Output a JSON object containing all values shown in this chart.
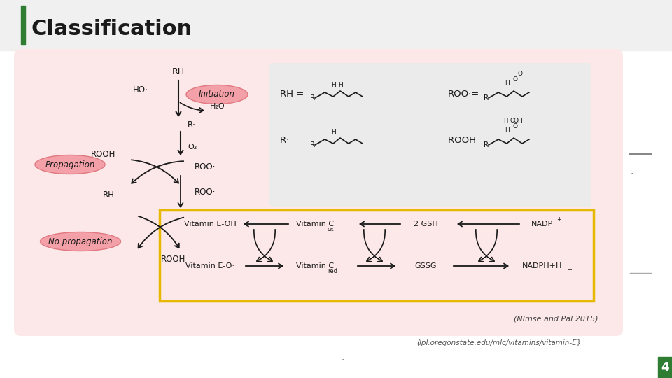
{
  "title": "Classification",
  "title_color": "#1a1a1a",
  "title_bar_color": "#2e7d32",
  "bg_color": "#ffffff",
  "main_panel_color": "#fce8e8",
  "chem_panel_color": "#ebebeb",
  "yellow_box_color": "#e6b800",
  "citation1": "(NImse and Pal 2015)",
  "citation2": "(lpl.oregonstate.edu/mlc/vitamins/vitamin-E}",
  "page_number": "4",
  "pink_oval_color": "#f4a0a8",
  "pink_oval_edge": "#e07880",
  "arrow_color": "#1a1a1a",
  "right_dash_color": "#888888"
}
